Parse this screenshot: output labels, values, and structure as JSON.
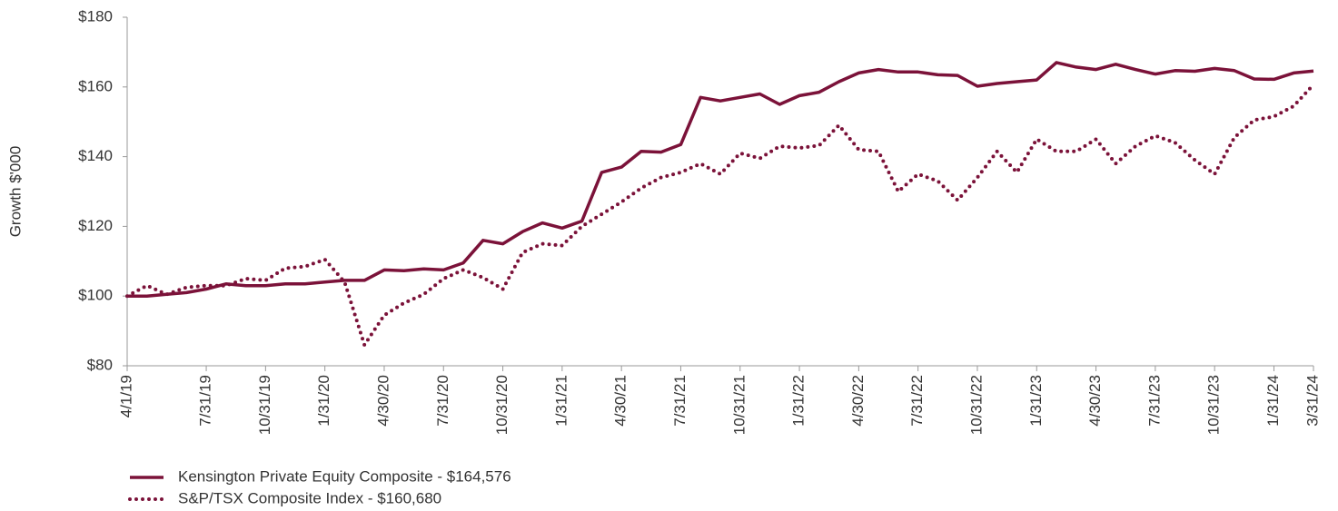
{
  "chart_data": {
    "type": "line",
    "y_label": "Growth $'000",
    "categories": [
      "4/1/19",
      null,
      null,
      null,
      "7/31/19",
      null,
      null,
      "10/31/19",
      null,
      null,
      "1/31/20",
      null,
      null,
      "4/30/20",
      null,
      null,
      "7/31/20",
      null,
      null,
      "10/31/20",
      null,
      null,
      "1/31/21",
      null,
      null,
      "4/30/21",
      null,
      null,
      "7/31/21",
      null,
      null,
      "10/31/21",
      null,
      null,
      "1/31/22",
      null,
      null,
      "4/30/22",
      null,
      null,
      "7/31/22",
      null,
      null,
      "10/31/22",
      null,
      null,
      "1/31/23",
      null,
      null,
      "4/30/23",
      null,
      null,
      "7/31/23",
      null,
      null,
      "10/31/23",
      null,
      null,
      "1/31/24",
      null,
      "3/31/24"
    ],
    "series": [
      {
        "name": "Kensington Private Equity Composite - $164,576",
        "color": "#7b1239",
        "style": "solid",
        "values": [
          100,
          100,
          100.5,
          101,
          102,
          103.5,
          103,
          103,
          103.5,
          103.5,
          104,
          104.5,
          104.5,
          107.5,
          107.3,
          107.8,
          107.5,
          109.5,
          116,
          115,
          118.5,
          121,
          119.5,
          121.5,
          135.5,
          137,
          141.5,
          141.3,
          143.5,
          157,
          156,
          157,
          158,
          155,
          157.5,
          158.5,
          161.5,
          164,
          165,
          164.3,
          164.3,
          163.5,
          163.3,
          160.2,
          161,
          161.5,
          162,
          167,
          165.7,
          165,
          166.5,
          165,
          163.7,
          164.7,
          164.5,
          165.3,
          164.7,
          162.3,
          162.2,
          164,
          164.576
        ]
      },
      {
        "name": "S&P/TSX Composite Index - $160,680",
        "color": "#7b1239",
        "style": "dotted",
        "values": [
          100,
          103,
          100.5,
          102.5,
          103,
          103,
          105,
          104.5,
          108,
          108.5,
          110.5,
          104,
          86,
          94.5,
          98,
          100.5,
          105,
          107.5,
          105.3,
          102,
          112.5,
          115,
          114.5,
          120,
          123.5,
          127,
          131,
          134,
          135.5,
          138,
          135,
          141,
          139.5,
          143,
          142.5,
          143.2,
          149,
          142,
          141.5,
          130,
          135,
          133,
          127.5,
          134,
          141.5,
          135.5,
          145,
          141.5,
          141.5,
          145,
          138,
          143,
          146,
          144,
          139,
          135,
          145.5,
          150.5,
          151.5,
          154.5,
          160.68
        ]
      }
    ],
    "ylim": [
      80,
      180
    ],
    "yticks": [
      {
        "value": 80,
        "label": "$80"
      },
      {
        "value": 100,
        "label": "$100"
      },
      {
        "value": 120,
        "label": "$120"
      },
      {
        "value": 140,
        "label": "$140"
      },
      {
        "value": 160,
        "label": "$160"
      },
      {
        "value": 180,
        "label": "$180"
      }
    ],
    "grid": false,
    "legend": "bottom-left"
  }
}
